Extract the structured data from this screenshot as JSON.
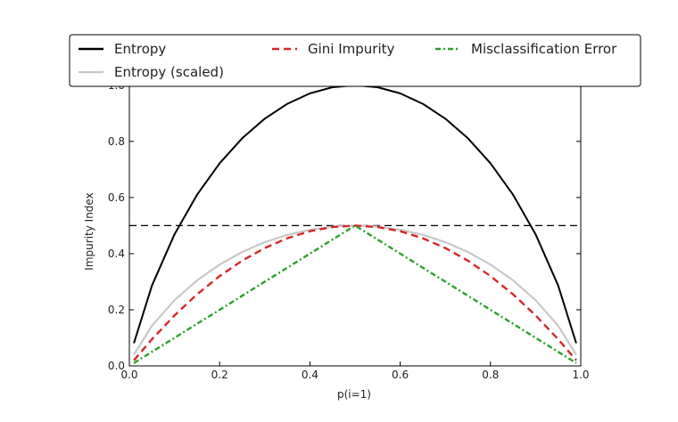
{
  "chart_data": {
    "type": "line",
    "xlabel": "p(i=1)",
    "ylabel": "Impurity Index",
    "xlim": [
      0.0,
      1.0
    ],
    "ylim": [
      0.0,
      1.05
    ],
    "xticks": [
      0.0,
      0.2,
      0.4,
      0.6,
      0.8,
      1.0
    ],
    "xtick_labels": [
      "0.0",
      "0.2",
      "0.4",
      "0.6",
      "0.8",
      "1.0"
    ],
    "yticks": [
      0.0,
      0.2,
      0.4,
      0.6,
      0.8,
      1.0
    ],
    "ytick_labels": [
      "0.0",
      "0.2",
      "0.4",
      "0.6",
      "0.8",
      "1.0"
    ],
    "hlines": [
      0.5,
      1.0
    ],
    "grid": false,
    "legend_position": "top, above plot",
    "x": [
      0.01,
      0.05,
      0.1,
      0.15,
      0.2,
      0.25,
      0.3,
      0.35,
      0.4,
      0.45,
      0.5,
      0.55,
      0.6,
      0.65,
      0.7,
      0.75,
      0.8,
      0.85,
      0.9,
      0.95,
      0.99
    ],
    "series": [
      {
        "name": "Entropy",
        "color": "#000000",
        "dash": "solid",
        "values": [
          0.081,
          0.286,
          0.469,
          0.61,
          0.722,
          0.811,
          0.881,
          0.934,
          0.971,
          0.993,
          1.0,
          0.993,
          0.971,
          0.934,
          0.881,
          0.811,
          0.722,
          0.61,
          0.469,
          0.286,
          0.081
        ]
      },
      {
        "name": "Entropy (scaled)",
        "color": "#c8c8c8",
        "dash": "solid",
        "values": [
          0.04,
          0.143,
          0.234,
          0.305,
          0.361,
          0.406,
          0.441,
          0.467,
          0.485,
          0.496,
          0.5,
          0.496,
          0.485,
          0.467,
          0.441,
          0.406,
          0.361,
          0.305,
          0.234,
          0.143,
          0.04
        ]
      },
      {
        "name": "Gini Impurity",
        "color": "#d62728",
        "dash": "dashed",
        "values": [
          0.02,
          0.095,
          0.18,
          0.255,
          0.32,
          0.375,
          0.42,
          0.455,
          0.48,
          0.495,
          0.5,
          0.495,
          0.48,
          0.455,
          0.42,
          0.375,
          0.32,
          0.255,
          0.18,
          0.095,
          0.02
        ]
      },
      {
        "name": "Misclassification Error",
        "color": "#2ca02c",
        "dash": "dashdot",
        "values": [
          0.01,
          0.05,
          0.1,
          0.15,
          0.2,
          0.25,
          0.3,
          0.35,
          0.4,
          0.45,
          0.5,
          0.45,
          0.4,
          0.35,
          0.3,
          0.25,
          0.2,
          0.15,
          0.1,
          0.05,
          0.01
        ]
      }
    ]
  }
}
